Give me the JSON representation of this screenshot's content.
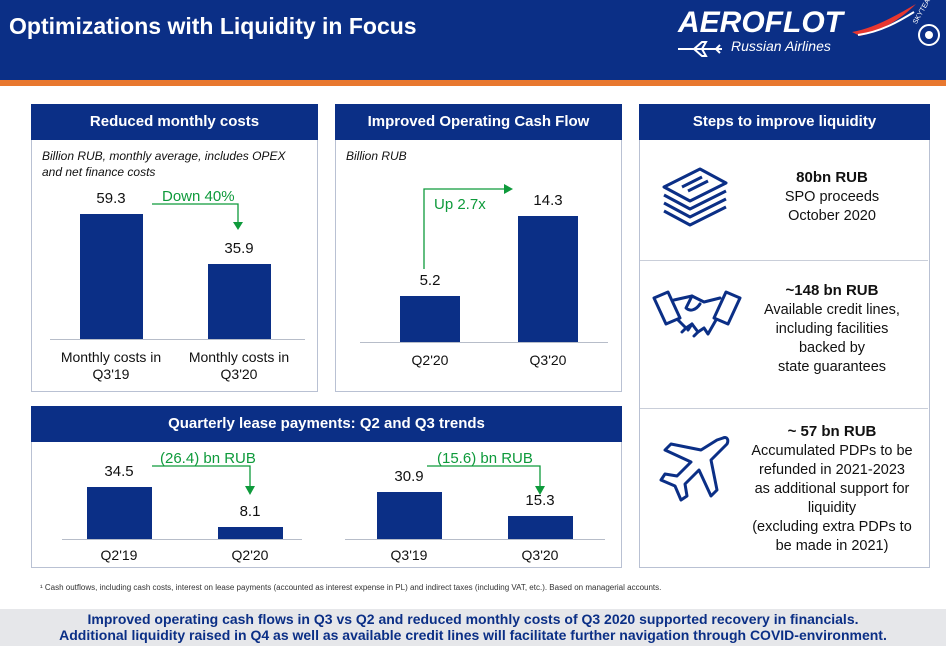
{
  "header": {
    "title": "Optimizations with Liquidity in Focus",
    "logo_word": "AEROFLOT",
    "logo_sub": "Russian Airlines",
    "logo_alliance": "SKYTEAM"
  },
  "colors": {
    "brand_blue": "#0b2f86",
    "accent_orange": "#e8782f",
    "annotation_green": "#0e9a3b",
    "bottom_bar": "#e6e7ea"
  },
  "panels": {
    "costs": {
      "title": "Reduced monthly costs",
      "note": "Billion RUB, monthly average, includes OPEX and net finance costs",
      "annotation": "Down 40%"
    },
    "cashflow": {
      "title": "Improved Operating Cash Flow",
      "note": "Billion RUB",
      "annotation": "Up 2.7x"
    },
    "lease": {
      "title": "Quarterly lease payments: Q2 and Q3 trends",
      "annotation_left": "(26.4) bn RUB",
      "annotation_right": "(15.6) bn RUB"
    },
    "steps": {
      "title": "Steps to improve liquidity",
      "items": [
        {
          "icon": "money-stack-icon",
          "headline": "80bn RUB",
          "lines": [
            "SPO proceeds",
            "October 2020"
          ]
        },
        {
          "icon": "handshake-icon",
          "headline": "~148 bn RUB",
          "lines": [
            "Available credit lines,",
            "including  facilities",
            "backed by",
            "state guarantees"
          ]
        },
        {
          "icon": "airplane-icon",
          "headline": "~ 57 bn RUB",
          "lines": [
            "Accumulated PDPs to be",
            "refunded in 2021-2023",
            "as additional support for",
            "liquidity",
            "(excluding extra PDPs to",
            "be made in 2021)"
          ]
        }
      ]
    }
  },
  "chart_data": [
    {
      "type": "bar",
      "title": "Reduced monthly costs",
      "ylabel": "Billion RUB",
      "categories": [
        "Monthly costs in Q3'19",
        "Monthly costs in Q3'20"
      ],
      "categories_display": [
        [
          "Monthly costs in",
          "Q3'19"
        ],
        [
          "Monthly costs in",
          "Q3'20"
        ]
      ],
      "values": [
        59.3,
        35.9
      ],
      "value_labels": [
        "59.3",
        "35.9"
      ],
      "annotation": "Down 40%"
    },
    {
      "type": "bar",
      "title": "Improved Operating Cash Flow",
      "ylabel": "Billion RUB",
      "categories": [
        "Q2'20",
        "Q3'20"
      ],
      "values": [
        5.2,
        14.3
      ],
      "value_labels": [
        "5.2",
        "14.3"
      ],
      "annotation": "Up 2.7x"
    },
    {
      "type": "bar",
      "title": "Quarterly lease payments: Q2 trend",
      "categories": [
        "Q2'19",
        "Q2'20"
      ],
      "values": [
        34.5,
        8.1
      ],
      "value_labels": [
        "34.5",
        "8.1"
      ],
      "annotation": "(26.4) bn RUB"
    },
    {
      "type": "bar",
      "title": "Quarterly lease payments: Q3 trend",
      "categories": [
        "Q3'19",
        "Q3'20"
      ],
      "values": [
        30.9,
        15.3
      ],
      "value_labels": [
        "30.9",
        "15.3"
      ],
      "annotation": "(15.6) bn RUB"
    }
  ],
  "footnote": "¹ Cash outflows, including cash costs, interest on lease payments (accounted as interest expense in PL) and indirect taxes (including VAT, etc.). Based on managerial accounts.",
  "bottom": {
    "line1": "Improved operating cash flows in Q3 vs Q2 and reduced monthly costs of Q3 2020 supported recovery in financials.",
    "line2": "Additional liquidity raised in Q4 as well as available credit lines will facilitate further navigation through COVID-environment."
  }
}
